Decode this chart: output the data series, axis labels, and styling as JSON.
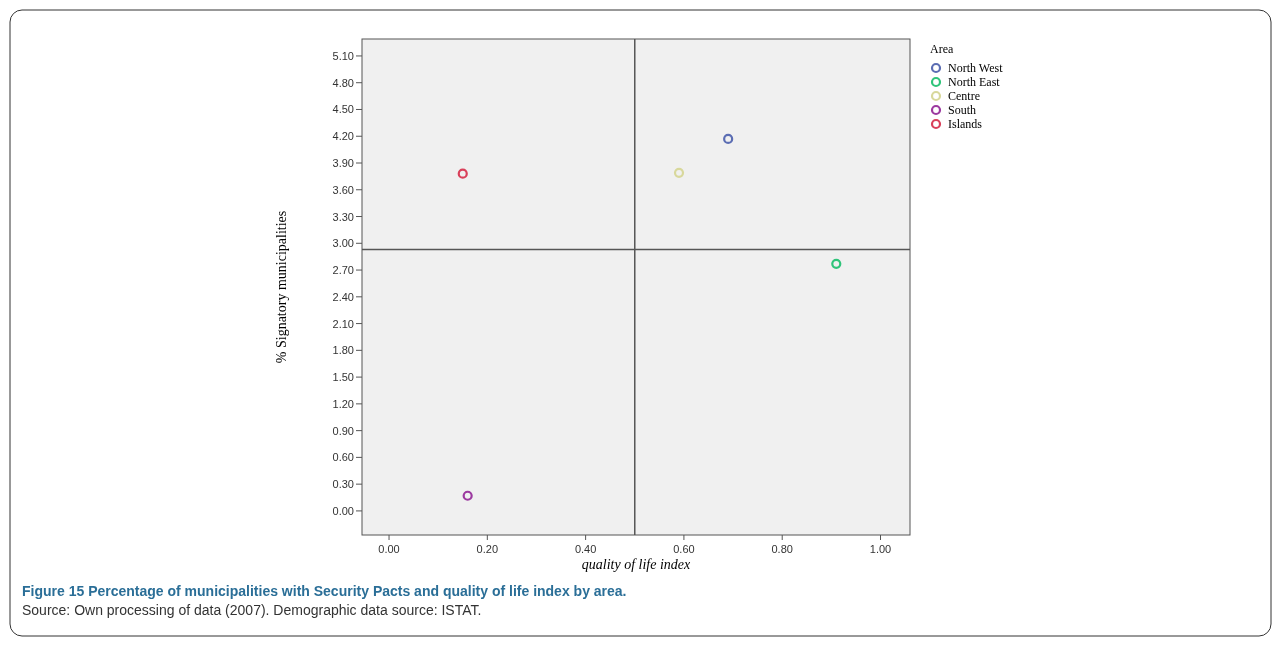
{
  "chart_data": {
    "type": "scatter",
    "title": "Figure 15 Percentage of municipalities with Security Pacts and quality of life index by area.",
    "annotations": [
      "Source: Own processing of data (2007). Demographic data source: ISTAT."
    ],
    "xlabel": "quality of life index",
    "ylabel": "% Signatory municipalities",
    "legend_title": "Area",
    "legend": "top right",
    "marker": "circle",
    "grid": false,
    "xlim": [
      -0.055,
      1.06
    ],
    "ylim": [
      -0.27,
      5.29
    ],
    "xticks": [
      {
        "value": 0,
        "label": "0.00"
      },
      {
        "value": 0.2,
        "label": "0.20"
      },
      {
        "value": 0.4,
        "label": "0.40"
      },
      {
        "value": 0.6,
        "label": "0.60"
      },
      {
        "value": 0.8,
        "label": "0.80"
      },
      {
        "value": 1,
        "label": "1.00"
      }
    ],
    "yticks": [
      {
        "value": 0,
        "label": "0.00"
      },
      {
        "value": 0.3,
        "label": "0.30"
      },
      {
        "value": 0.6,
        "label": "0.60"
      },
      {
        "value": 0.9,
        "label": "0.90"
      },
      {
        "value": 1.2,
        "label": "1.20"
      },
      {
        "value": 1.5,
        "label": "1.50"
      },
      {
        "value": 1.8,
        "label": "1.80"
      },
      {
        "value": 2.1,
        "label": "2.10"
      },
      {
        "value": 2.4,
        "label": "2.40"
      },
      {
        "value": 2.7,
        "label": "2.70"
      },
      {
        "value": 3,
        "label": "3.00"
      },
      {
        "value": 3.3,
        "label": "3.30"
      },
      {
        "value": 3.6,
        "label": "3.60"
      },
      {
        "value": 3.9,
        "label": "3.90"
      },
      {
        "value": 4.2,
        "label": "4.20"
      },
      {
        "value": 4.5,
        "label": "4.50"
      },
      {
        "value": 4.8,
        "label": "4.80"
      },
      {
        "value": 5.1,
        "label": "5.10"
      }
    ],
    "ref_lines": [
      {
        "axis": "x",
        "value": 0.5,
        "color": "#555555"
      },
      {
        "axis": "y",
        "value": 2.93,
        "color": "#555555"
      }
    ],
    "series": [
      {
        "name": "North West",
        "color": "#5b6db3",
        "x": [
          0.69
        ],
        "values": [
          4.17
        ]
      },
      {
        "name": "North East",
        "color": "#2fc47a",
        "x": [
          0.91
        ],
        "values": [
          2.77
        ]
      },
      {
        "name": "Centre",
        "color": "#d8d89c",
        "x": [
          0.59
        ],
        "values": [
          3.79
        ]
      },
      {
        "name": "South",
        "color": "#9c3aa0",
        "x": [
          0.16
        ],
        "values": [
          0.17
        ]
      },
      {
        "name": "Islands",
        "color": "#d9405a",
        "x": [
          0.15
        ],
        "values": [
          3.78
        ]
      }
    ]
  }
}
